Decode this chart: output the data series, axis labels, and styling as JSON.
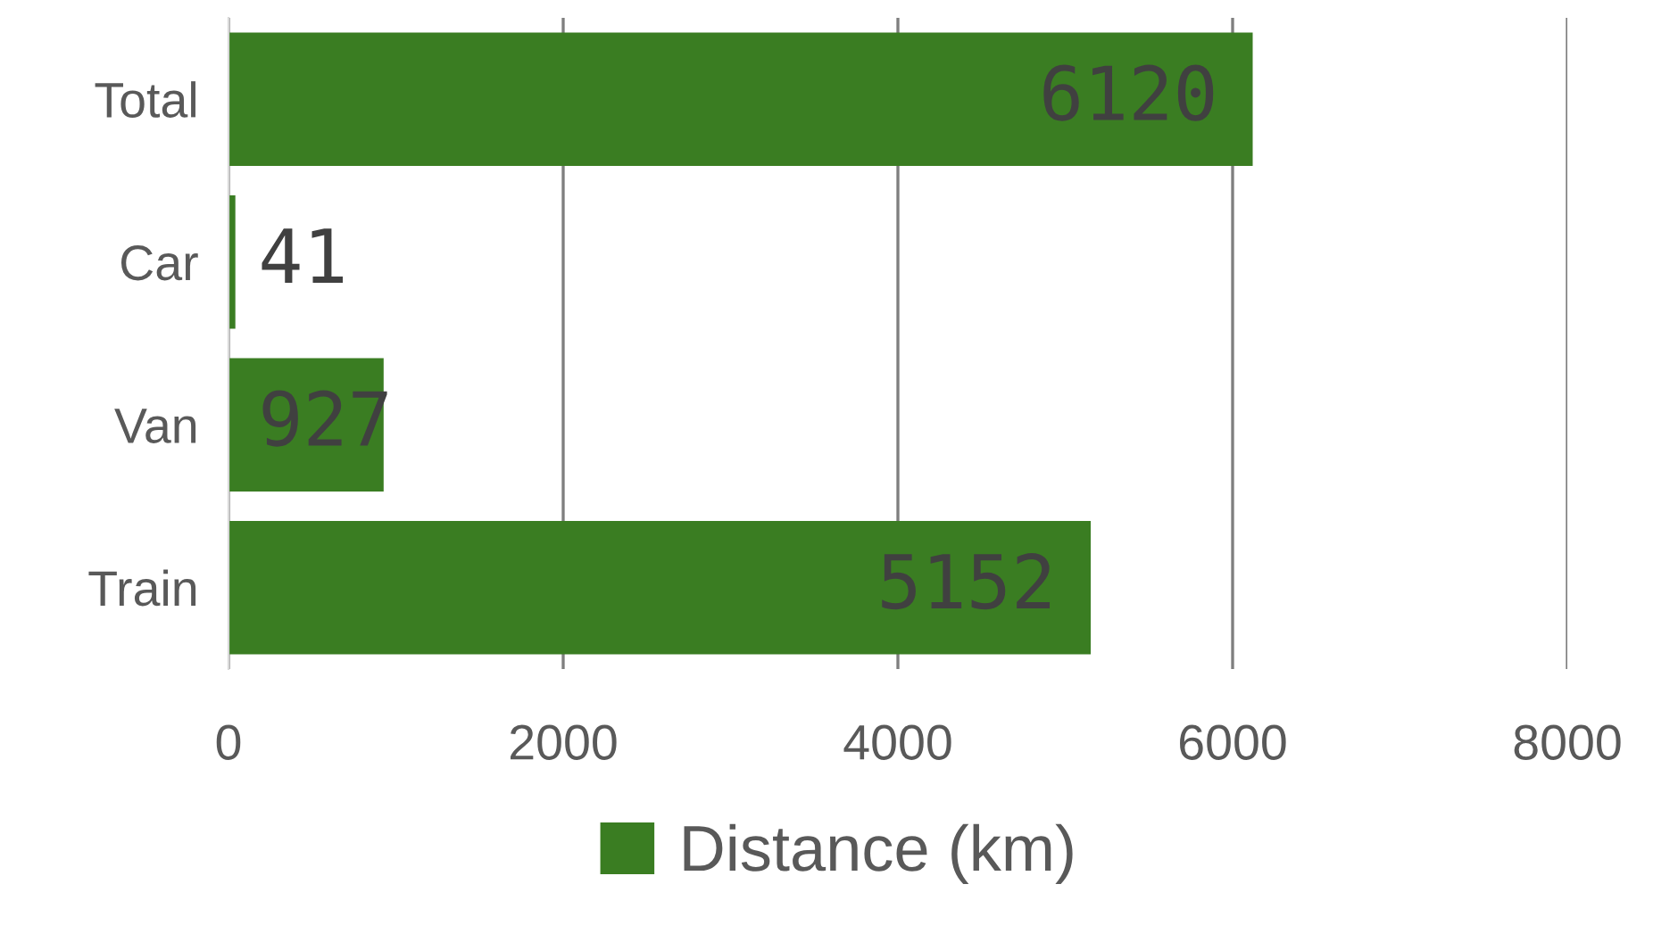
{
  "chart_data": {
    "type": "bar",
    "orientation": "horizontal",
    "categories": [
      "Total",
      "Car",
      "Van",
      "Train"
    ],
    "series": [
      {
        "name": "Distance (km)",
        "color": "#3a7d22",
        "values": [
          6120,
          41,
          927,
          5152
        ]
      }
    ],
    "xlim": [
      0,
      8000
    ],
    "xticks": [
      0,
      2000,
      4000,
      6000,
      8000
    ],
    "grid": "x",
    "legend": "bottom",
    "data_labels": true
  }
}
